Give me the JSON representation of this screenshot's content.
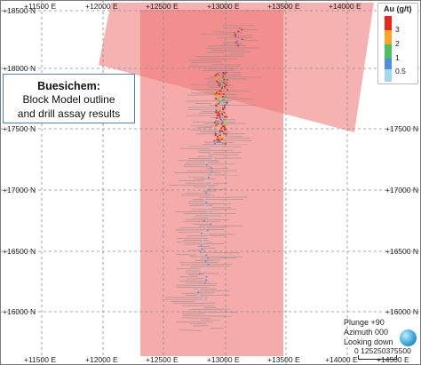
{
  "map": {
    "title": "Buesichem:",
    "subtitle_line1": "Block Model outline",
    "subtitle_line2": "and drill assay results",
    "easting_labels": [
      "+11500 E",
      "+12000 E",
      "+12500 E",
      "+13000 E",
      "+13500 E",
      "+14000 E",
      "+14500 E"
    ],
    "northing_labels": [
      "+18500 N",
      "+18000 N",
      "+17500 N",
      "+17000 N",
      "+16500 N",
      "+16000 N"
    ],
    "colors": {
      "block_model": "#f07878",
      "block_model_overlap": "#ee6a6a",
      "drill_trace": "#8a8a8a",
      "grid": "#8c8c8c"
    }
  },
  "legend": {
    "title": "Au (g/t)",
    "items": [
      {
        "label": "3",
        "color": "#e8261b"
      },
      {
        "label": "2",
        "color": "#f6a623"
      },
      {
        "label": "1",
        "color": "#4cc05a"
      },
      {
        "label": "0.5",
        "color": "#4f8fe0"
      },
      {
        "label": "",
        "color": "#a8d4ec"
      }
    ]
  },
  "view": {
    "plunge": "Plunge +90",
    "azimuth": "Azimuth 000",
    "looking": "Looking down",
    "scale_label": "0 125250375500"
  }
}
